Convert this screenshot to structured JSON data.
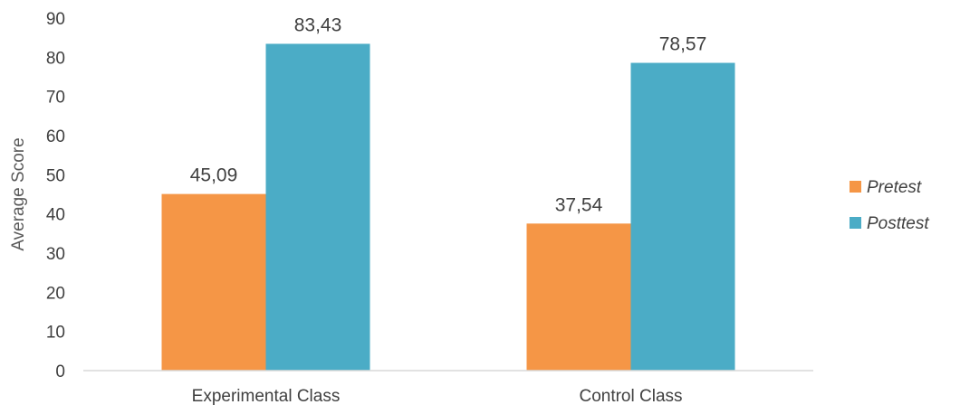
{
  "chart_data": {
    "type": "bar",
    "title": "",
    "xlabel": "",
    "ylabel": "Average Score",
    "ylim": [
      0,
      90
    ],
    "yticks": [
      0,
      10,
      20,
      30,
      40,
      50,
      60,
      70,
      80,
      90
    ],
    "categories": [
      "Experimental Class",
      "Control Class"
    ],
    "series": [
      {
        "name": "Pretest",
        "values": [
          45.09,
          37.54
        ],
        "labels": [
          "45,09",
          "37,54"
        ],
        "color": "#F59646"
      },
      {
        "name": "Posttest",
        "values": [
          83.43,
          78.57
        ],
        "labels": [
          "83,43",
          "78,57"
        ],
        "color": "#4BACC6"
      }
    ],
    "grid": false,
    "legend_position": "right"
  }
}
